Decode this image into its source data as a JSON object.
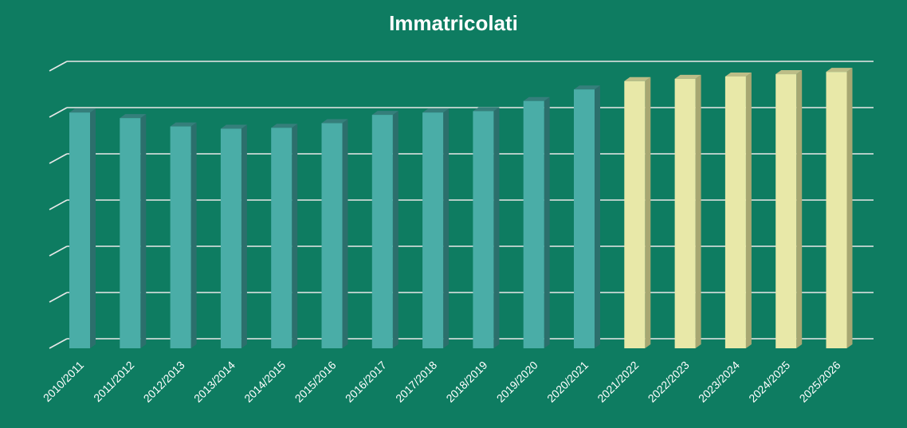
{
  "chart_data": {
    "type": "bar",
    "title": "Immatricolati",
    "xlabel": "",
    "ylabel": "",
    "ylim": [
      0,
      6
    ],
    "grid": true,
    "categories": [
      "2010/2011",
      "2011/2012",
      "2012/2013",
      "2013/2014",
      "2014/2015",
      "2015/2016",
      "2016/2017",
      "2017/2018",
      "2018/2019",
      "2019/2020",
      "2020/2021",
      "2021/2022",
      "2022/2023",
      "2023/2024",
      "2024/2025",
      "2025/2026"
    ],
    "values": [
      5.1,
      4.98,
      4.8,
      4.75,
      4.77,
      4.87,
      5.05,
      5.1,
      5.13,
      5.35,
      5.6,
      5.78,
      5.83,
      5.88,
      5.93,
      5.98
    ],
    "bar_colors": [
      "#4aada7",
      "#4aada7",
      "#4aada7",
      "#4aada7",
      "#4aada7",
      "#4aada7",
      "#4aada7",
      "#4aada7",
      "#4aada7",
      "#4aada7",
      "#4aada7",
      "#e8e8a8",
      "#e8e8a8",
      "#e8e8a8",
      "#e8e8a8",
      "#e8e8a8"
    ]
  }
}
